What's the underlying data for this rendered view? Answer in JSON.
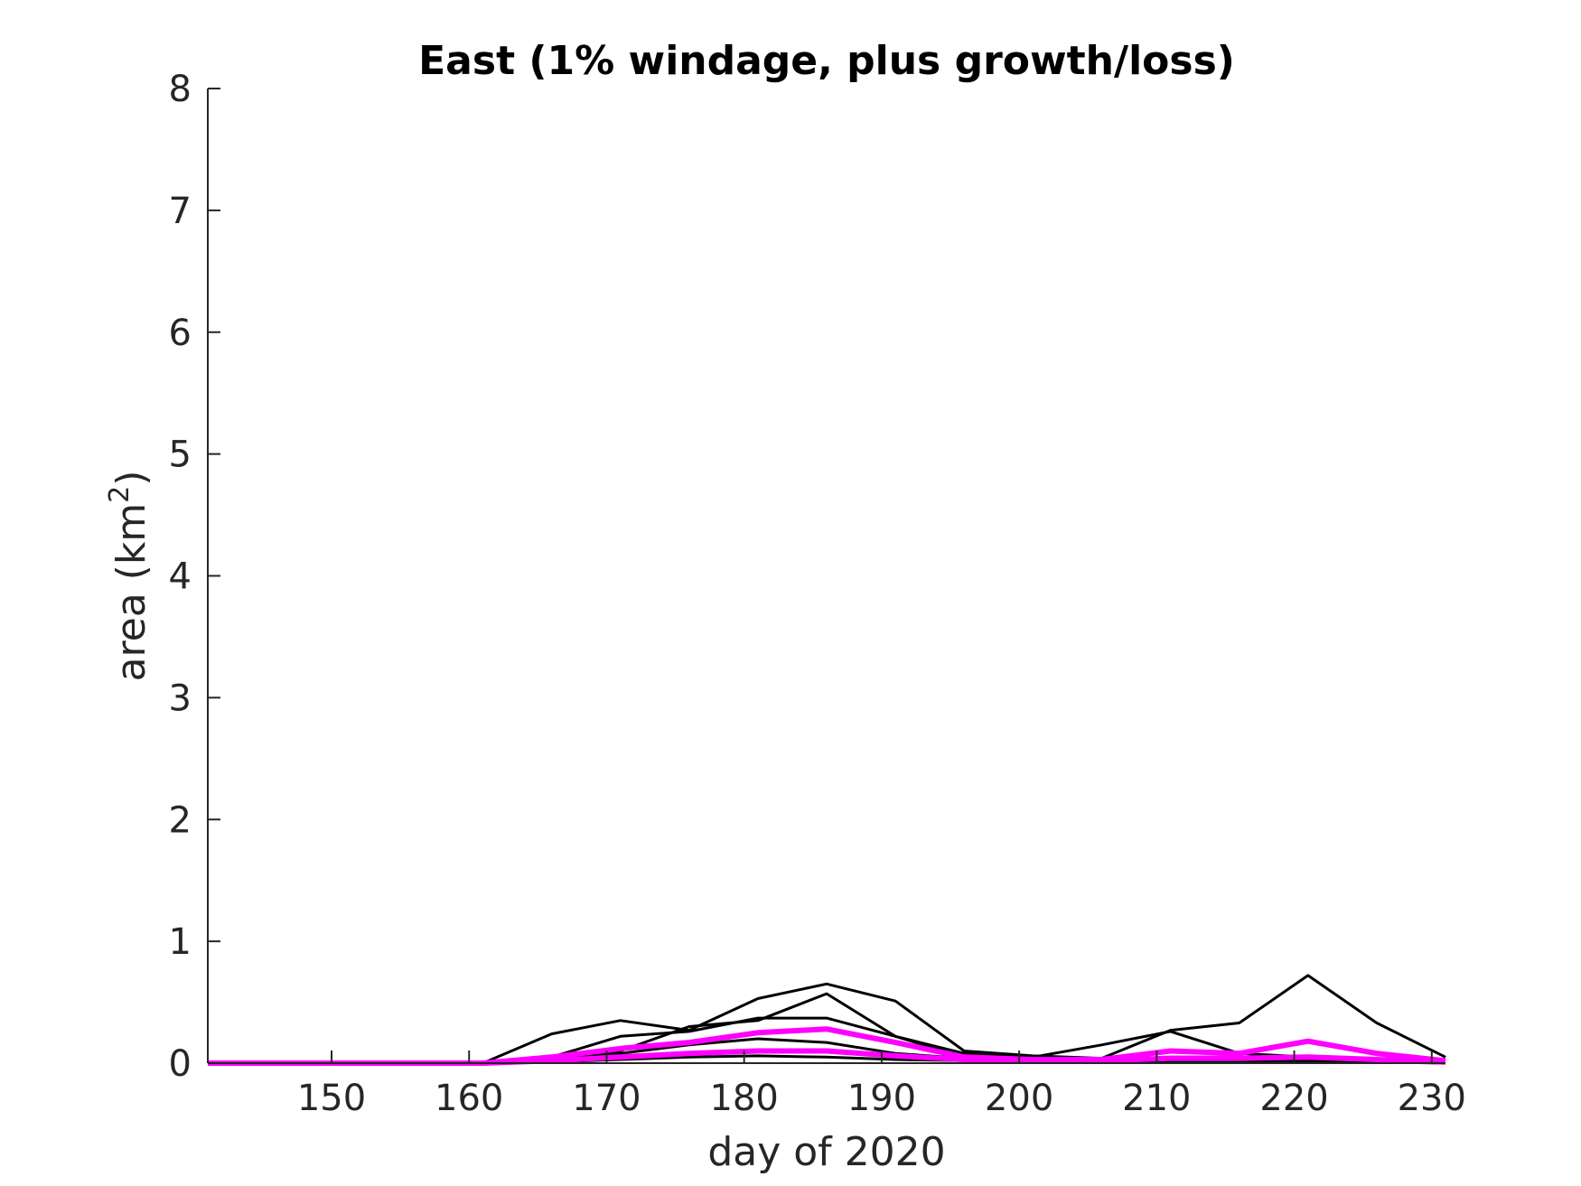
{
  "chart_data": {
    "type": "line",
    "title": "East (1% windage, plus growth/loss)",
    "xlabel": "day of 2020",
    "ylabel_main": "area (km",
    "ylabel_sup": "2",
    "ylabel_close": ")",
    "xlim": [
      141,
      231
    ],
    "ylim": [
      0,
      8
    ],
    "xticks": [
      150,
      160,
      170,
      180,
      190,
      200,
      210,
      220,
      230
    ],
    "yticks": [
      0,
      1,
      2,
      3,
      4,
      5,
      6,
      7,
      8
    ],
    "xtick_labels": [
      "150",
      "160",
      "170",
      "180",
      "190",
      "200",
      "210",
      "220",
      "230"
    ],
    "ytick_labels": [
      "0",
      "1",
      "2",
      "3",
      "4",
      "5",
      "6",
      "7",
      "8"
    ],
    "grid": false,
    "legend": "none",
    "colors": {
      "axis": "#262626",
      "ensemble": "#000000",
      "mean": "#ff00ff"
    },
    "x": [
      141,
      146,
      151,
      156,
      161,
      166,
      171,
      176,
      181,
      186,
      191,
      196,
      201,
      206,
      211,
      216,
      221,
      226,
      231
    ],
    "series": [
      {
        "color": "#000000",
        "values": [
          0,
          0,
          0,
          0,
          0,
          0.24,
          0.35,
          0.27,
          0.53,
          0.65,
          0.51,
          0.1,
          0.06,
          0.04,
          0.27,
          0.33,
          0.72,
          0.33,
          0.05
        ]
      },
      {
        "color": "#000000",
        "values": [
          0,
          0,
          0,
          0,
          0,
          0.05,
          0.22,
          0.26,
          0.37,
          0.37,
          0.22,
          0.08,
          0.05,
          0.15,
          0.26,
          0.08,
          0.05,
          0.03,
          0.02
        ]
      },
      {
        "color": "#000000",
        "values": [
          0,
          0,
          0,
          0,
          0,
          0.04,
          0.1,
          0.3,
          0.35,
          0.57,
          0.22,
          0.05,
          0.03,
          0.03,
          0.05,
          0.05,
          0.05,
          0.03,
          0.02
        ]
      },
      {
        "color": "#000000",
        "values": [
          0,
          0,
          0,
          0,
          0,
          0.02,
          0.08,
          0.15,
          0.2,
          0.17,
          0.08,
          0.04,
          0.02,
          0.02,
          0.03,
          0.03,
          0.03,
          0.02,
          0.01
        ]
      },
      {
        "color": "#000000",
        "values": [
          0,
          0,
          0,
          0,
          0,
          0.01,
          0.03,
          0.05,
          0.06,
          0.05,
          0.03,
          0.02,
          0.01,
          0.01,
          0.01,
          0.01,
          0.01,
          0.01,
          0
        ]
      },
      {
        "color": "#ff00ff",
        "values": [
          0,
          0,
          0,
          0,
          0,
          0.05,
          0.12,
          0.17,
          0.25,
          0.28,
          0.17,
          0.05,
          0.03,
          0.03,
          0.1,
          0.08,
          0.18,
          0.08,
          0.02
        ]
      },
      {
        "color": "#ff00ff",
        "values": [
          0,
          0,
          0,
          0,
          0,
          0.02,
          0.05,
          0.08,
          0.1,
          0.1,
          0.06,
          0.03,
          0.02,
          0.02,
          0.04,
          0.04,
          0.05,
          0.03,
          0.01
        ]
      }
    ]
  }
}
